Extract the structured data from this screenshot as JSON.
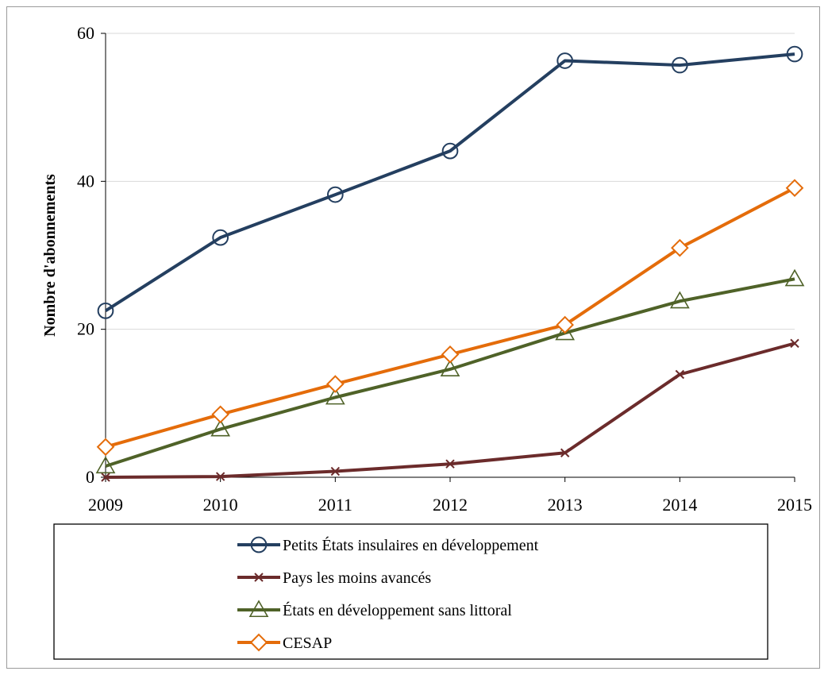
{
  "chart_data": {
    "type": "line",
    "title": "",
    "xlabel": "",
    "ylabel": "Nombre d'abonnements",
    "ylim": [
      0,
      60
    ],
    "yticks": [
      0,
      20,
      40,
      60
    ],
    "grid": true,
    "legend_position": "bottom",
    "x": [
      "2009",
      "2010",
      "2011",
      "2012",
      "2013",
      "2014",
      "2015"
    ],
    "series": [
      {
        "name": "Petits États insulaires en développement",
        "color": "#243F60",
        "marker": "circle",
        "values": [
          22.5,
          32.4,
          38.2,
          44.1,
          56.3,
          55.7,
          57.2
        ]
      },
      {
        "name": "Pays les moins avancés",
        "color": "#6B2B2B",
        "marker": "x",
        "values": [
          0.0,
          0.1,
          0.8,
          1.8,
          3.3,
          13.9,
          18.1
        ]
      },
      {
        "name": "États en développement sans littoral",
        "color": "#4F6228",
        "marker": "triangle",
        "values": [
          1.5,
          6.5,
          10.8,
          14.6,
          19.5,
          23.8,
          26.8
        ]
      },
      {
        "name": "CESAP",
        "color": "#E46C0A",
        "marker": "diamond",
        "values": [
          4.1,
          8.5,
          12.6,
          16.6,
          20.6,
          31.0,
          39.1
        ]
      }
    ]
  }
}
